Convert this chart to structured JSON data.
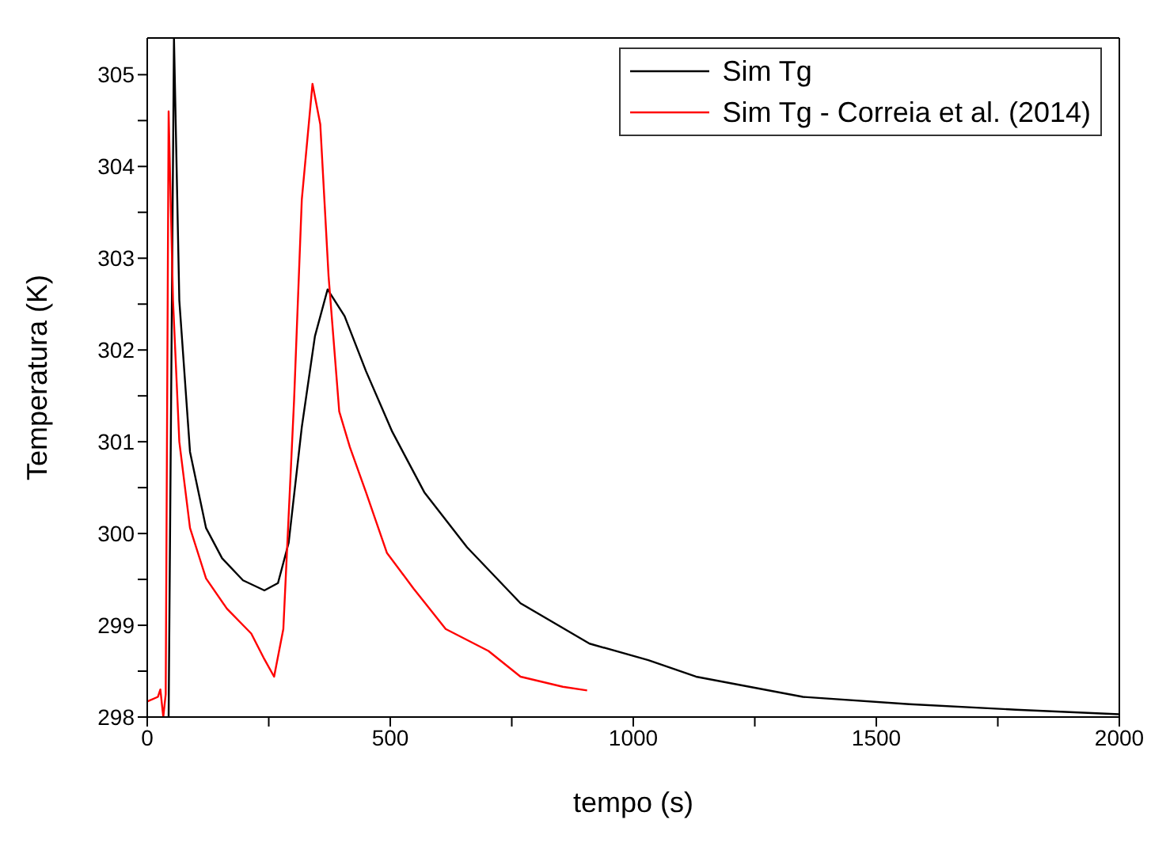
{
  "chart_data": {
    "type": "line",
    "xlabel": "tempo (s)",
    "ylabel": "Temperatura (K)",
    "xlim": [
      0,
      2000
    ],
    "xticks": [
      0,
      {
        "value": 250,
        "label": null
      },
      500,
      {
        "value": 750,
        "label": null
      },
      1000,
      {
        "value": 1250,
        "label": null
      },
      1500,
      {
        "value": 1750,
        "label": null
      },
      2000
    ],
    "ylim": [
      298,
      305.4
    ],
    "yticks": [
      298,
      {
        "value": 298.5,
        "label": null
      },
      299,
      {
        "value": 299.5,
        "label": null
      },
      300,
      {
        "value": 300.5,
        "label": null
      },
      301,
      {
        "value": 301.5,
        "label": null
      },
      302,
      {
        "value": 302.5,
        "label": null
      },
      303,
      {
        "value": 303.5,
        "label": null
      },
      304,
      {
        "value": 304.5,
        "label": null
      },
      305
    ],
    "grid": false,
    "legend": "top right",
    "marker": "none",
    "line_style": "solid",
    "series": [
      {
        "name": "Sim Tg",
        "color": "#000000",
        "x": [
          44,
          55,
          66,
          88,
          121,
          154,
          197,
          241,
          269,
          291,
          318,
          345,
          371,
          406,
          450,
          504,
          570,
          658,
          768,
          910,
          1031,
          1129,
          1349,
          1568,
          1787,
          2000
        ],
        "values": [
          298,
          305.4,
          302.54,
          300.89,
          300.06,
          299.73,
          299.49,
          299.38,
          299.46,
          299.9,
          301.16,
          302.15,
          302.66,
          302.37,
          301.77,
          301.11,
          300.45,
          299.85,
          299.24,
          298.8,
          298.62,
          298.44,
          298.22,
          298.14,
          298.08,
          298.03
        ]
      },
      {
        "name": "Sim Tg - Correia et al. (2014)",
        "color": "#ff0000",
        "x": [
          0,
          22,
          27,
          33,
          38,
          44,
          53,
          66,
          88,
          121,
          164,
          214,
          241,
          261,
          280,
          302,
          318,
          340,
          356,
          373,
          395,
          417,
          450,
          493,
          548,
          614,
          702,
          768,
          855,
          905
        ],
        "values": [
          298.17,
          298.22,
          298.3,
          298,
          298.25,
          304.6,
          302.54,
          301,
          300.06,
          299.51,
          299.18,
          298.91,
          298.63,
          298.44,
          298.96,
          301.44,
          303.64,
          304.9,
          304.46,
          302.81,
          301.33,
          300.94,
          300.45,
          299.79,
          299.4,
          298.96,
          298.72,
          298.44,
          298.33,
          298.29
        ]
      }
    ]
  }
}
